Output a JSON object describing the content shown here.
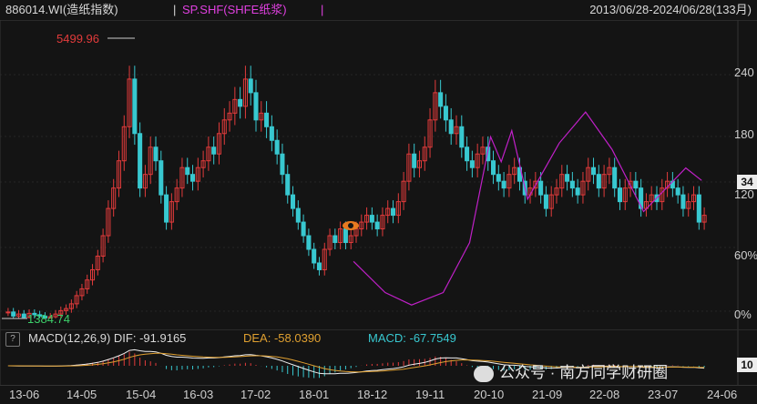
{
  "header": {
    "code": "886014.WI(造纸指数)",
    "sep": "|",
    "series": "SP.SHF(SHFE纸浆)",
    "sep2": "|",
    "range": "2013/06/28-2024/06/28(133月)"
  },
  "annotations": {
    "high": "5499.96",
    "low": "1384.74"
  },
  "right_axis": {
    "ticks": [
      "240",
      "180",
      "120",
      "60%",
      "0%"
    ],
    "badge": "34"
  },
  "macd": {
    "help": "?",
    "label": "MACD(12,26,9)  DIF: -91.9165",
    "dea": "DEA: -58.0390",
    "macd": "MACD: -67.7549",
    "badge": "10"
  },
  "x_axis": {
    "labels": [
      "13-06",
      "14-05",
      "15-04",
      "16-03",
      "17-02",
      "18-01",
      "18-12",
      "19-11",
      "20-10",
      "21-09",
      "22-08",
      "23-07",
      "24-06"
    ]
  },
  "watermark": {
    "text": "公众号 · 南方同学财研圈"
  },
  "colors": {
    "up": "#e23b3b",
    "down": "#38c8d0",
    "overlay": "#c020c8",
    "dea": "#e0a030",
    "dif": "#f0f0f0"
  },
  "chart_data": {
    "type": "candlestick",
    "index_monthly_close": [
      1480,
      1420,
      1450,
      1400,
      1460,
      1440,
      1420,
      1390,
      1410,
      1450,
      1500,
      1530,
      1600,
      1720,
      1820,
      1950,
      2100,
      2300,
      2600,
      3000,
      3300,
      3700,
      4200,
      4900,
      4100,
      3300,
      3500,
      3900,
      3700,
      3200,
      2800,
      3100,
      3300,
      3600,
      3500,
      3400,
      3600,
      3700,
      3900,
      3800,
      4100,
      4300,
      4400,
      4600,
      4500,
      4900,
      4700,
      4300,
      4400,
      4200,
      4000,
      3800,
      3500,
      3200,
      3000,
      2800,
      2600,
      2400,
      2200,
      2100,
      2400,
      2600,
      2500,
      2700,
      2500,
      2600,
      2700,
      2800,
      2900,
      2800,
      2700,
      2900,
      3000,
      2900,
      3100,
      3400,
      3800,
      3600,
      3700,
      3900,
      4300,
      4700,
      4500,
      4300,
      4100,
      4200,
      3900,
      3700,
      3600,
      3800,
      3900,
      3700,
      3500,
      3400,
      3300,
      3500,
      3600,
      3400,
      3200,
      3300,
      3400,
      3200,
      3000,
      3200,
      3300,
      3500,
      3400,
      3300,
      3200,
      3400,
      3600,
      3500,
      3300,
      3500,
      3600,
      3300,
      3100,
      3300,
      3400,
      3300,
      3000,
      3100,
      3200,
      3100,
      3300,
      3400,
      3300,
      3200,
      3000,
      3100,
      3200,
      2800,
      2900
    ],
    "overlay_series": [
      {
        "name": "SP.SHF(SHFE纸浆)",
        "points": [
          [
            "18-12",
            4800
          ],
          [
            "19-06",
            4300
          ],
          [
            "19-11",
            4100
          ],
          [
            "20-05",
            4300
          ],
          [
            "20-10",
            5100
          ],
          [
            "21-02",
            6800
          ],
          [
            "21-04",
            6400
          ],
          [
            "21-06",
            6900
          ],
          [
            "21-09",
            5800
          ],
          [
            "22-03",
            6700
          ],
          [
            "22-08",
            7200
          ],
          [
            "23-01",
            6600
          ],
          [
            "23-07",
            5600
          ],
          [
            "24-03",
            6300
          ],
          [
            "24-06",
            6100
          ]
        ]
      }
    ],
    "ylabels_right": [
      "240",
      "180",
      "120",
      "60%",
      "0%"
    ]
  }
}
